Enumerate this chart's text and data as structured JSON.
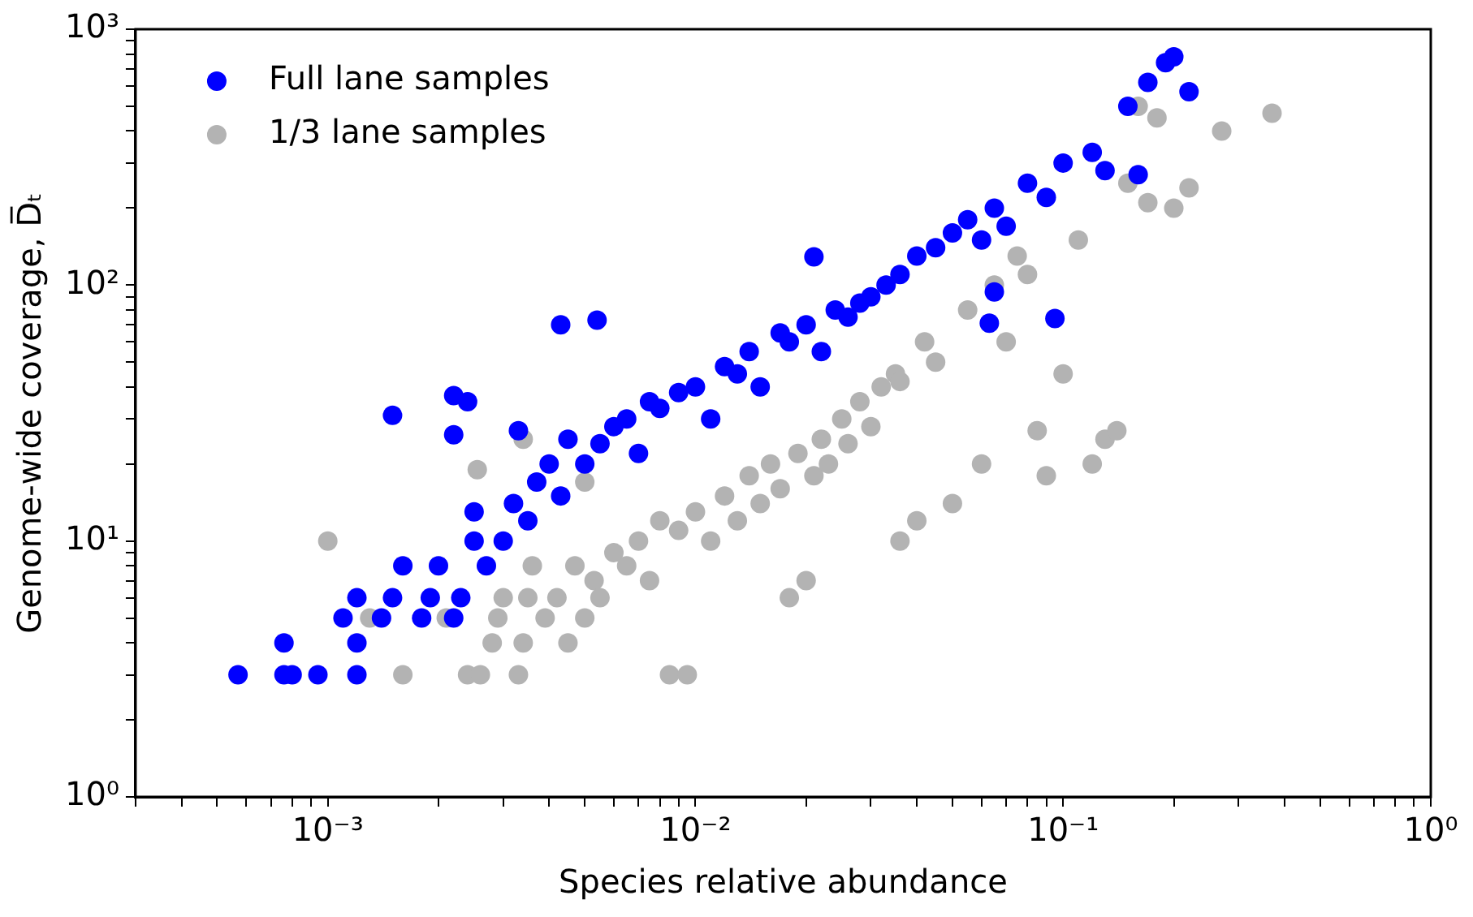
{
  "chart_data": {
    "type": "scatter",
    "xlabel": "Species relative abundance",
    "ylabel": "Genome-wide coverage, D̅ₜ",
    "log": "xy",
    "grid": false,
    "legend": "top left",
    "marker": "circle",
    "xlim": [
      0.0003,
      1
    ],
    "ylim": [
      1,
      1000
    ],
    "xticks": [
      {
        "value": 0.0003,
        "label": null
      },
      {
        "value": 0.0004,
        "label": null
      },
      {
        "value": 0.0005,
        "label": null
      },
      {
        "value": 0.0006,
        "label": null
      },
      {
        "value": 0.0007,
        "label": null
      },
      {
        "value": 0.0008,
        "label": null
      },
      {
        "value": 0.0009,
        "label": null
      },
      {
        "value": 0.001,
        "label": "10⁻³"
      },
      {
        "value": 0.002,
        "label": null
      },
      {
        "value": 0.003,
        "label": null
      },
      {
        "value": 0.004,
        "label": null
      },
      {
        "value": 0.005,
        "label": null
      },
      {
        "value": 0.006,
        "label": null
      },
      {
        "value": 0.007,
        "label": null
      },
      {
        "value": 0.008,
        "label": null
      },
      {
        "value": 0.009,
        "label": null
      },
      {
        "value": 0.01,
        "label": "10⁻²"
      },
      {
        "value": 0.02,
        "label": null
      },
      {
        "value": 0.03,
        "label": null
      },
      {
        "value": 0.04,
        "label": null
      },
      {
        "value": 0.05,
        "label": null
      },
      {
        "value": 0.06,
        "label": null
      },
      {
        "value": 0.07,
        "label": null
      },
      {
        "value": 0.08,
        "label": null
      },
      {
        "value": 0.09,
        "label": null
      },
      {
        "value": 0.1,
        "label": "10⁻¹"
      },
      {
        "value": 0.2,
        "label": null
      },
      {
        "value": 0.3,
        "label": null
      },
      {
        "value": 0.4,
        "label": null
      },
      {
        "value": 0.5,
        "label": null
      },
      {
        "value": 0.6,
        "label": null
      },
      {
        "value": 0.7,
        "label": null
      },
      {
        "value": 0.8,
        "label": null
      },
      {
        "value": 0.9,
        "label": null
      },
      {
        "value": 1,
        "label": "10⁰"
      }
    ],
    "yticks": [
      {
        "value": 1,
        "label": "10⁰"
      },
      {
        "value": 2,
        "label": null
      },
      {
        "value": 3,
        "label": null
      },
      {
        "value": 4,
        "label": null
      },
      {
        "value": 5,
        "label": null
      },
      {
        "value": 6,
        "label": null
      },
      {
        "value": 7,
        "label": null
      },
      {
        "value": 8,
        "label": null
      },
      {
        "value": 9,
        "label": null
      },
      {
        "value": 10,
        "label": "10¹"
      },
      {
        "value": 20,
        "label": null
      },
      {
        "value": 30,
        "label": null
      },
      {
        "value": 40,
        "label": null
      },
      {
        "value": 50,
        "label": null
      },
      {
        "value": 60,
        "label": null
      },
      {
        "value": 70,
        "label": null
      },
      {
        "value": 80,
        "label": null
      },
      {
        "value": 90,
        "label": null
      },
      {
        "value": 100,
        "label": "10²"
      },
      {
        "value": 200,
        "label": null
      },
      {
        "value": 300,
        "label": null
      },
      {
        "value": 400,
        "label": null
      },
      {
        "value": 500,
        "label": null
      },
      {
        "value": 600,
        "label": null
      },
      {
        "value": 700,
        "label": null
      },
      {
        "value": 800,
        "label": null
      },
      {
        "value": 900,
        "label": null
      },
      {
        "value": 1000,
        "label": "10³"
      }
    ],
    "series": [
      {
        "name": "Full lane samples",
        "color": "#0000ff",
        "x": [
          0.00057,
          0.00076,
          0.0008,
          0.00094,
          0.0012,
          0.00076,
          0.0012,
          0.0011,
          0.0012,
          0.0014,
          0.0015,
          0.0016,
          0.0018,
          0.0019,
          0.002,
          0.0022,
          0.0023,
          0.0025,
          0.0025,
          0.0027,
          0.003,
          0.0032,
          0.0035,
          0.0037,
          0.004,
          0.0043,
          0.0045,
          0.005,
          0.0055,
          0.006,
          0.0065,
          0.007,
          0.0075,
          0.008,
          0.009,
          0.01,
          0.011,
          0.012,
          0.013,
          0.014,
          0.015,
          0.017,
          0.018,
          0.02,
          0.022,
          0.024,
          0.026,
          0.028,
          0.03,
          0.033,
          0.036,
          0.04,
          0.045,
          0.05,
          0.055,
          0.06,
          0.065,
          0.07,
          0.08,
          0.09,
          0.1,
          0.12,
          0.13,
          0.15,
          0.17,
          0.19,
          0.2,
          0.22,
          0.16,
          0.0015,
          0.0022,
          0.0024,
          0.0022,
          0.0033,
          0.0043,
          0.0054,
          0.021,
          0.063,
          0.065,
          0.095
        ],
        "values": [
          3,
          3,
          3,
          3,
          3,
          4,
          4,
          5,
          6,
          5,
          6,
          8,
          5,
          6,
          8,
          5,
          6,
          10,
          13,
          8,
          10,
          14,
          12,
          17,
          20,
          15,
          25,
          20,
          24,
          28,
          30,
          22,
          35,
          33,
          38,
          40,
          30,
          48,
          45,
          55,
          40,
          65,
          60,
          70,
          55,
          80,
          75,
          85,
          90,
          100,
          110,
          130,
          140,
          160,
          180,
          150,
          200,
          170,
          250,
          220,
          300,
          330,
          280,
          500,
          620,
          740,
          780,
          570,
          270,
          31,
          37,
          35,
          26,
          27,
          70,
          73,
          129,
          71,
          94,
          74
        ]
      },
      {
        "name": "1/3 lane samples",
        "color": "#b3b3b3",
        "x": [
          0.001,
          0.0013,
          0.0016,
          0.0021,
          0.0024,
          0.0026,
          0.0028,
          0.0029,
          0.003,
          0.0033,
          0.0034,
          0.0035,
          0.0036,
          0.0039,
          0.0042,
          0.0045,
          0.0047,
          0.005,
          0.0053,
          0.0055,
          0.006,
          0.0065,
          0.007,
          0.0075,
          0.008,
          0.0085,
          0.009,
          0.0095,
          0.01,
          0.011,
          0.012,
          0.013,
          0.014,
          0.015,
          0.016,
          0.017,
          0.018,
          0.019,
          0.02,
          0.021,
          0.022,
          0.023,
          0.025,
          0.026,
          0.028,
          0.03,
          0.032,
          0.035,
          0.036,
          0.04,
          0.042,
          0.045,
          0.05,
          0.055,
          0.06,
          0.065,
          0.07,
          0.075,
          0.08,
          0.085,
          0.09,
          0.1,
          0.11,
          0.12,
          0.13,
          0.14,
          0.15,
          0.16,
          0.17,
          0.18,
          0.2,
          0.22,
          0.27,
          0.37,
          0.0034,
          0.005,
          0.036,
          0.00255
        ],
        "values": [
          10,
          5,
          3,
          5,
          3,
          3,
          4,
          5,
          6,
          3,
          4,
          6,
          8,
          5,
          6,
          4,
          8,
          5,
          7,
          6,
          9,
          8,
          10,
          7,
          12,
          3,
          11,
          3,
          13,
          10,
          15,
          12,
          18,
          14,
          20,
          16,
          6,
          22,
          7,
          18,
          25,
          20,
          30,
          24,
          35,
          28,
          40,
          45,
          10,
          12,
          60,
          50,
          14,
          80,
          20,
          100,
          60,
          130,
          110,
          27,
          18,
          45,
          150,
          20,
          25,
          27,
          250,
          500,
          210,
          450,
          200,
          240,
          400,
          470,
          25,
          17,
          42,
          19
        ]
      }
    ]
  }
}
